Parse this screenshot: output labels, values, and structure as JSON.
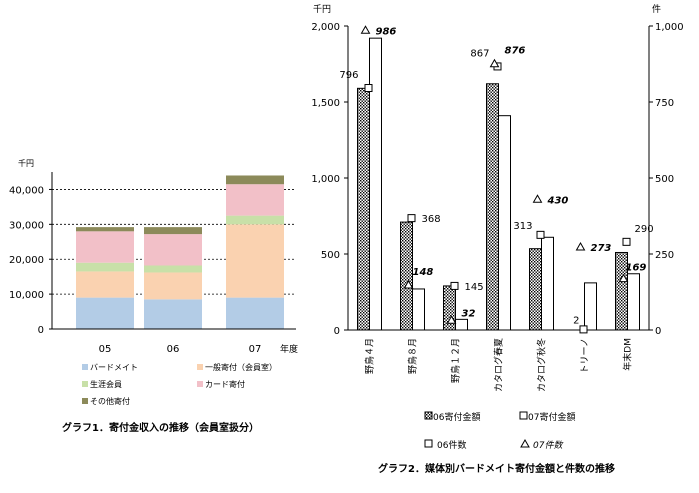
{
  "chart_data": [
    {
      "type": "bar",
      "stacked": true,
      "title": "グラフ1．寄付金収入の推移（会員室扱分）",
      "unit_label": "千円",
      "xlabel": "年度",
      "categories": [
        "05",
        "06",
        "07"
      ],
      "ylim": [
        0,
        45000
      ],
      "yticks": [
        "0",
        "10,000",
        "20,000",
        "30,000",
        "40,000"
      ],
      "ytick_values": [
        0,
        10000,
        20000,
        30000,
        40000
      ],
      "gridlines": true,
      "legend_position": "bottom",
      "series": [
        {
          "name": "バードメイト",
          "color": "#b3cce6",
          "values": [
            9000,
            8500,
            9000
          ]
        },
        {
          "name": "一般寄付（会員室）",
          "color": "#fad2b0",
          "values": [
            7500,
            7700,
            21000
          ]
        },
        {
          "name": "生涯会員",
          "color": "#c8e0a8",
          "values": [
            2500,
            2000,
            2500
          ]
        },
        {
          "name": "カード寄付",
          "color": "#f2c0c8",
          "values": [
            9000,
            9000,
            9000
          ]
        },
        {
          "name": "その他寄付",
          "color": "#8c8a5a",
          "values": [
            1200,
            2000,
            2500
          ]
        }
      ]
    },
    {
      "type": "bar",
      "title": "グラフ2．媒体別バードメイト寄付金額と件数の推移",
      "categories": [
        "野鳥４月",
        "野鳥８月",
        "野鳥１２月",
        "カタログ春夏",
        "カタログ秋冬",
        "トリーノ",
        "年末DM"
      ],
      "left_axis": {
        "unit_label": "千円",
        "ylim": [
          0,
          2000
        ],
        "ticks": [
          "0",
          "500",
          "1,000",
          "1,500",
          "2,000"
        ],
        "tick_values": [
          0,
          500,
          1000,
          1500,
          2000
        ]
      },
      "right_axis": {
        "unit_label": "件",
        "ylim": [
          0,
          1000
        ],
        "ticks": [
          "0",
          "250",
          "500",
          "750",
          "1,000"
        ],
        "tick_values": [
          0,
          250,
          500,
          750,
          1000
        ]
      },
      "bar_series": [
        {
          "name": "06寄付金額",
          "pattern": "dotted",
          "values": [
            1590,
            710,
            290,
            1620,
            535,
            0,
            510
          ]
        },
        {
          "name": "07寄付金額",
          "pattern": "white",
          "values": [
            1920,
            270,
            70,
            1410,
            610,
            310,
            370
          ]
        }
      ],
      "marker_series": [
        {
          "name": "06件数",
          "marker": "square",
          "values": [
            796,
            368,
            145,
            867,
            313,
            2,
            290
          ],
          "labels": [
            "796",
            "368",
            "145",
            "867",
            "313",
            "2",
            "290"
          ]
        },
        {
          "name": "07件数",
          "marker": "triangle",
          "values": [
            986,
            148,
            32,
            876,
            430,
            273,
            169
          ],
          "labels": [
            "986",
            "148",
            "32",
            "876",
            "430",
            "273",
            "169"
          ]
        }
      ]
    }
  ]
}
